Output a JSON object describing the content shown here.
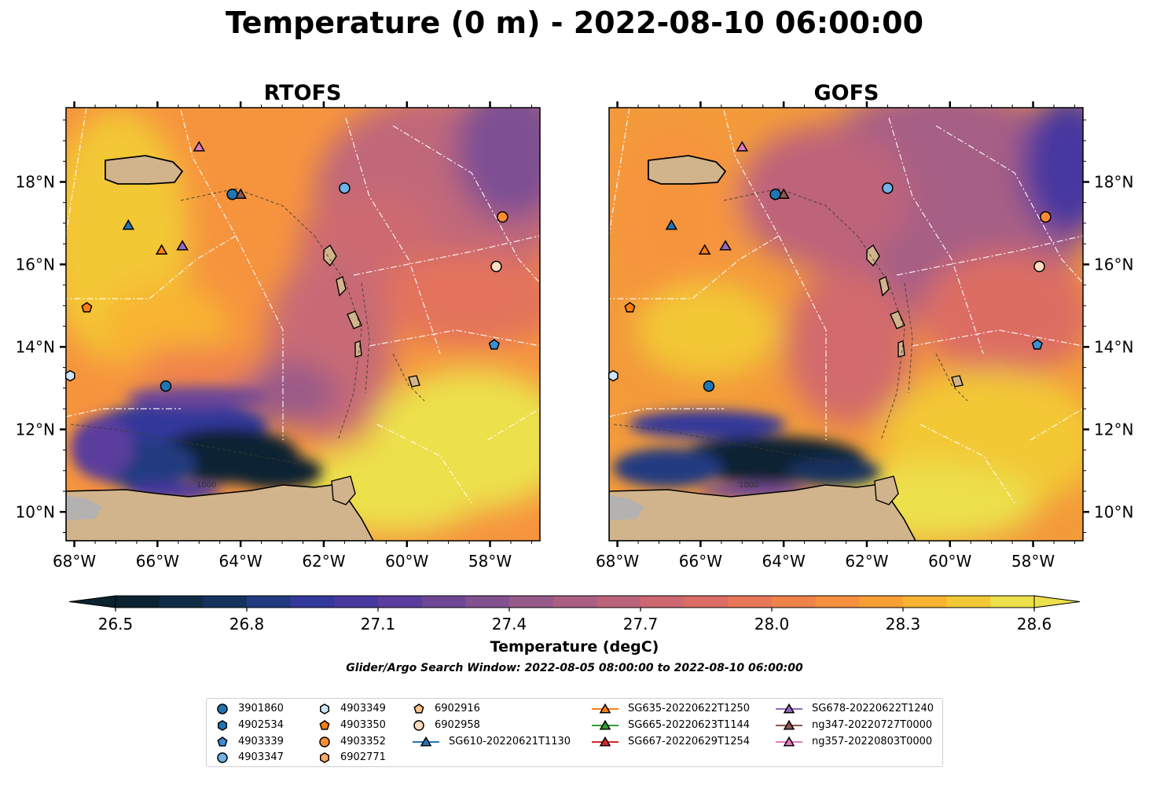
{
  "title": "Temperature (0 m) - 2022-08-10 06:00:00",
  "panels": [
    {
      "id": "rtofs",
      "title": "RTOFS"
    },
    {
      "id": "gofs",
      "title": "GOFS"
    }
  ],
  "axes": {
    "lon_ticks": [
      "68°W",
      "66°W",
      "64°W",
      "62°W",
      "60°W",
      "58°W"
    ],
    "lat_ticks": [
      "18°N",
      "16°N",
      "14°N",
      "12°N",
      "10°N"
    ],
    "lon_range": [
      -68.2,
      -56.8
    ],
    "lat_range": [
      9.3,
      19.8
    ]
  },
  "colorbar": {
    "ticks": [
      "26.5",
      "26.8",
      "27.1",
      "27.4",
      "27.7",
      "28.0",
      "28.3",
      "28.6"
    ],
    "label": "Temperature (degC)",
    "range": [
      26.5,
      28.6
    ],
    "colors": [
      "#0b2230",
      "#102b45",
      "#15325e",
      "#213a80",
      "#33399a",
      "#47399f",
      "#5a3d9c",
      "#6e4797",
      "#825190",
      "#97598a",
      "#aa5f83",
      "#bc647a",
      "#cd6870",
      "#dc6d64",
      "#e87658",
      "#f0824c",
      "#f6903f",
      "#f9a035",
      "#f8b431",
      "#f3c836",
      "#ece04b"
    ]
  },
  "search_window": "Glider/Argo Search Window: 2022-08-05 08:00:00 to 2022-08-10 06:00:00",
  "contour_label": "1000",
  "observations": [
    {
      "label": "3901860",
      "marker": "circle",
      "color": "#1f77b4",
      "lon": -65.8,
      "lat": 13.05
    },
    {
      "label": "4902534",
      "marker": "hexagon",
      "color": "#1f77b4",
      "lon": null,
      "lat": null
    },
    {
      "label": "4903339",
      "marker": "pentagon",
      "color": "#3a8fd6",
      "lon": -57.9,
      "lat": 14.05
    },
    {
      "label": "4903347",
      "marker": "circle",
      "color": "#6fb3e8",
      "lon": -61.5,
      "lat": 17.85
    },
    {
      "label": "4903349",
      "marker": "hexagon",
      "color": "#cfe6f7",
      "lon": -68.1,
      "lat": 13.3
    },
    {
      "label": "4903350",
      "marker": "pentagon",
      "color": "#ff7f0e",
      "lon": -67.7,
      "lat": 14.95
    },
    {
      "label": "4903352",
      "marker": "circle",
      "color": "#ff8c33",
      "lon": -57.7,
      "lat": 17.15
    },
    {
      "label": "6902771",
      "marker": "hexagon",
      "color": "#ffab63",
      "lon": null,
      "lat": null
    },
    {
      "label": "6902916",
      "marker": "pentagon",
      "color": "#ffc48f",
      "lon": null,
      "lat": null
    },
    {
      "label": "6902958",
      "marker": "circle",
      "color": "#ffdcc0",
      "lon": -57.85,
      "lat": 15.95
    },
    {
      "label": "SG610-20220621T1130",
      "marker": "triangle",
      "color": "#1f77b4",
      "lon": -66.7,
      "lat": 16.95
    },
    {
      "label": "SG635-20220622T1250",
      "marker": "triangle",
      "color": "#ff7f0e",
      "lon": -65.9,
      "lat": 16.35
    },
    {
      "label": "SG665-20220623T1144",
      "marker": "triangle",
      "color": "#2ca02c",
      "lon": null,
      "lat": null
    },
    {
      "label": "SG667-20220629T1254",
      "marker": "triangle",
      "color": "#d62728",
      "lon": null,
      "lat": null
    },
    {
      "label": "SG678-20220622T1240",
      "marker": "triangle",
      "color": "#9467bd",
      "lon": -65.4,
      "lat": 16.45
    },
    {
      "label": "ng347-20220727T0000",
      "marker": "triangle",
      "color": "#8c564b",
      "lon": -64.0,
      "lat": 17.7
    },
    {
      "label": "ng357-20220803T0000",
      "marker": "triangle",
      "color": "#e377c2",
      "lon": -65.0,
      "lat": 18.85
    }
  ],
  "extra_circle": {
    "color": "#1f77b4",
    "lon": -64.2,
    "lat": 17.7
  },
  "land_color": "#d2b48c"
}
